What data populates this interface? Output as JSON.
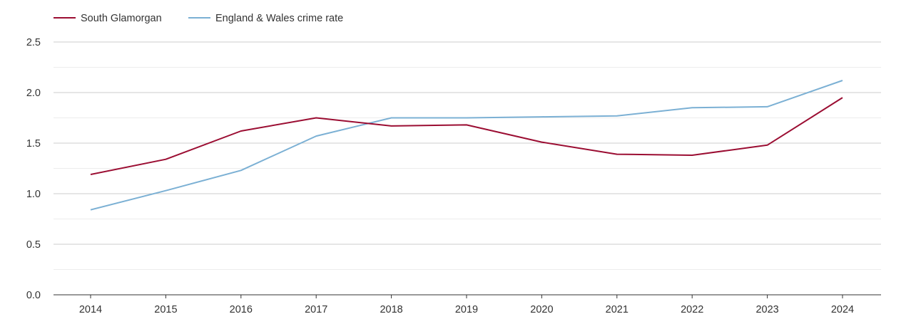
{
  "chart_data": {
    "type": "line",
    "title": "",
    "xlabel": "",
    "ylabel": "",
    "categories": [
      "2014",
      "2015",
      "2016",
      "2017",
      "2018",
      "2019",
      "2020",
      "2021",
      "2022",
      "2023",
      "2024"
    ],
    "ylim": [
      0,
      2.5
    ],
    "y_ticks": [
      "0.0",
      "0.5",
      "1.0",
      "1.5",
      "2.0",
      "2.5"
    ],
    "grid": true,
    "legend_position": "top-left",
    "series": [
      {
        "name": "South Glamorgan",
        "color": "#9b0d32",
        "values": [
          1.19,
          1.34,
          1.62,
          1.75,
          1.67,
          1.68,
          1.51,
          1.39,
          1.38,
          1.48,
          1.95
        ]
      },
      {
        "name": "England & Wales crime rate",
        "color": "#7bb0d4",
        "values": [
          0.84,
          1.03,
          1.23,
          1.57,
          1.75,
          1.75,
          1.76,
          1.77,
          1.85,
          1.86,
          2.12
        ]
      }
    ]
  }
}
